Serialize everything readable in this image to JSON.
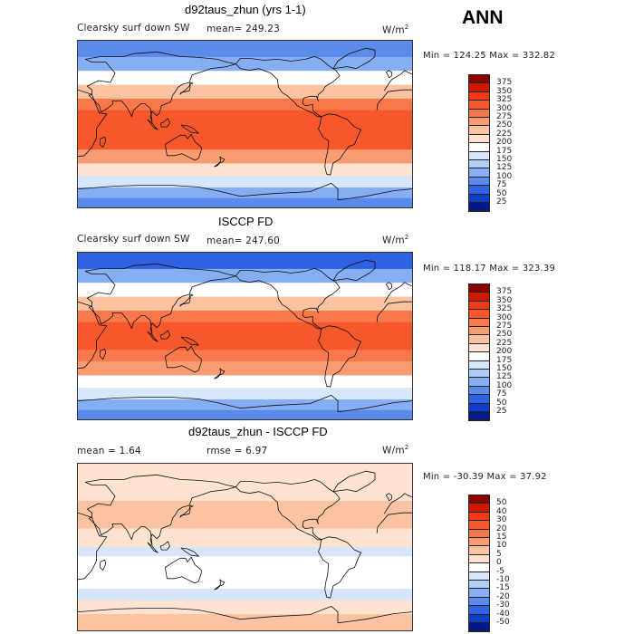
{
  "header": {
    "season": "ANN"
  },
  "panels": [
    {
      "id": "model",
      "title": "d92taus_zhun (yrs 1-1)",
      "left_label": "Clearsky surf down SW",
      "stat1": "mean= 249.23",
      "stat2": "",
      "units": "W/m",
      "units_sup": "2",
      "minmax": "Min = 124.25 Max = 332.82"
    },
    {
      "id": "obs",
      "title": "ISCCP FD",
      "left_label": "Clearsky surf down SW",
      "stat1": "mean= 247.60",
      "stat2": "",
      "units": "W/m",
      "units_sup": "2",
      "minmax": "Min = 118.17 Max = 323.39"
    },
    {
      "id": "diff",
      "title": "d92taus_zhun - ISCCP FD",
      "left_label": "mean =    1.64",
      "stat1": "rmse =    6.97",
      "stat2": "",
      "units": "W/m",
      "units_sup": "2",
      "minmax": "Min = -30.39 Max =  37.92"
    }
  ],
  "chart_data": [
    {
      "type": "heatmap",
      "title": "d92taus_zhun (yrs 1-1)",
      "subtitle": "Clearsky surf down SW",
      "mean": 249.23,
      "min": 124.25,
      "max": 332.82,
      "units": "W/m2",
      "colorbar": {
        "levels": [
          375,
          350,
          325,
          300,
          275,
          250,
          225,
          200,
          175,
          150,
          125,
          100,
          75,
          50,
          25
        ],
        "colors": [
          "#8b0000",
          "#cc1a00",
          "#ef3a16",
          "#f6582c",
          "#f87a4c",
          "#f99c72",
          "#fbc3a1",
          "#fde3d0",
          "#ffffff",
          "#d6e6fb",
          "#afcdf7",
          "#86aef2",
          "#5a8aea",
          "#2f62e3",
          "#0f3ec9",
          "#001a8c"
        ]
      },
      "lat_band_values": [
        {
          "lat": 80,
          "value": 80
        },
        {
          "lat": 65,
          "value": 120
        },
        {
          "lat": 50,
          "value": 195
        },
        {
          "lat": 35,
          "value": 245
        },
        {
          "lat": 20,
          "value": 285
        },
        {
          "lat": 10,
          "value": 305
        },
        {
          "lat": 0,
          "value": 310
        },
        {
          "lat": -10,
          "value": 312
        },
        {
          "lat": -20,
          "value": 300
        },
        {
          "lat": -35,
          "value": 260
        },
        {
          "lat": -50,
          "value": 200
        },
        {
          "lat": -62,
          "value": 160
        },
        {
          "lat": -75,
          "value": 120
        },
        {
          "lat": -85,
          "value": 95
        }
      ]
    },
    {
      "type": "heatmap",
      "title": "ISCCP FD",
      "subtitle": "Clearsky surf down SW",
      "mean": 247.6,
      "min": 118.17,
      "max": 323.39,
      "units": "W/m2",
      "colorbar": {
        "levels": [
          375,
          350,
          325,
          300,
          275,
          250,
          225,
          200,
          175,
          150,
          125,
          100,
          75,
          50,
          25
        ],
        "colors": [
          "#8b0000",
          "#cc1a00",
          "#ef3a16",
          "#f6582c",
          "#f87a4c",
          "#f99c72",
          "#fbc3a1",
          "#fde3d0",
          "#ffffff",
          "#d6e6fb",
          "#afcdf7",
          "#86aef2",
          "#5a8aea",
          "#2f62e3",
          "#0f3ec9",
          "#001a8c"
        ]
      },
      "lat_band_values": [
        {
          "lat": 80,
          "value": 70
        },
        {
          "lat": 65,
          "value": 115
        },
        {
          "lat": 50,
          "value": 190
        },
        {
          "lat": 35,
          "value": 245
        },
        {
          "lat": 20,
          "value": 290
        },
        {
          "lat": 10,
          "value": 305
        },
        {
          "lat": 0,
          "value": 310
        },
        {
          "lat": -10,
          "value": 305
        },
        {
          "lat": -20,
          "value": 290
        },
        {
          "lat": -35,
          "value": 250
        },
        {
          "lat": -50,
          "value": 195
        },
        {
          "lat": -62,
          "value": 155
        },
        {
          "lat": -75,
          "value": 115
        },
        {
          "lat": -85,
          "value": 90
        }
      ]
    },
    {
      "type": "heatmap",
      "title": "d92taus_zhun - ISCCP FD",
      "mean": 1.64,
      "rmse": 6.97,
      "min": -30.39,
      "max": 37.92,
      "units": "W/m2",
      "colorbar": {
        "levels": [
          50,
          40,
          30,
          20,
          15,
          10,
          5,
          0,
          -5,
          -10,
          -15,
          -20,
          -30,
          -40,
          -50
        ],
        "colors": [
          "#8b0000",
          "#cc1a00",
          "#ef3a16",
          "#f6582c",
          "#f87a4c",
          "#f99c72",
          "#fbc3a1",
          "#fde3d0",
          "#ffffff",
          "#d6e6fb",
          "#afcdf7",
          "#86aef2",
          "#5a8aea",
          "#2f62e3",
          "#0f3ec9",
          "#001a8c"
        ]
      },
      "lat_band_values": [
        {
          "lat": 80,
          "value": 4
        },
        {
          "lat": 60,
          "value": 3
        },
        {
          "lat": 40,
          "value": 6
        },
        {
          "lat": 25,
          "value": 7
        },
        {
          "lat": 15,
          "value": 4
        },
        {
          "lat": 5,
          "value": 2
        },
        {
          "lat": -5,
          "value": -6
        },
        {
          "lat": -15,
          "value": -4
        },
        {
          "lat": -25,
          "value": -3
        },
        {
          "lat": -40,
          "value": -5
        },
        {
          "lat": -50,
          "value": -6
        },
        {
          "lat": -65,
          "value": 4
        },
        {
          "lat": -80,
          "value": 6
        }
      ]
    }
  ]
}
